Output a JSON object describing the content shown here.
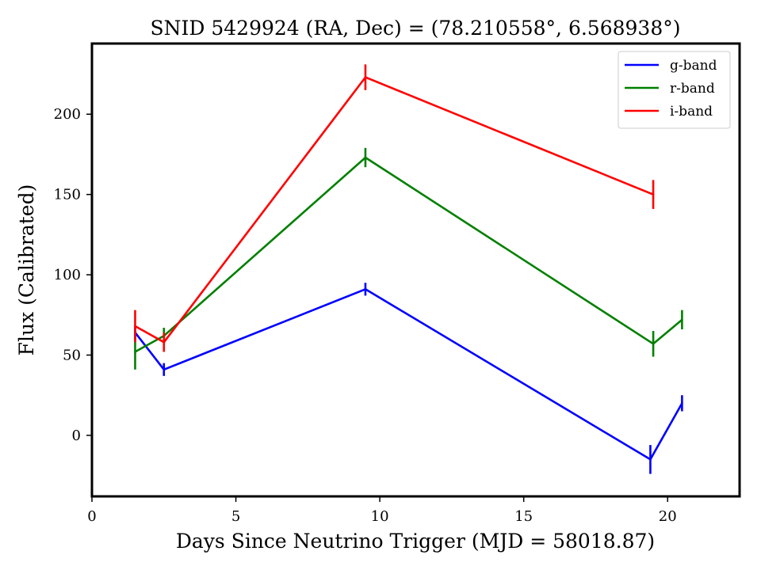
{
  "chart_data": {
    "type": "line",
    "title": "SNID 5429924   (RA, Dec) = (78.210558°, 6.568938°)",
    "xlabel": "Days Since Neutrino Trigger (MJD = 58018.87)",
    "ylabel": "Flux (Calibrated)",
    "xlim": [
      0,
      22.5
    ],
    "ylim": [
      -38,
      244
    ],
    "xticks": [
      0,
      5,
      10,
      15,
      20
    ],
    "yticks": [
      0,
      50,
      100,
      150,
      200
    ],
    "legend_position": "top-right",
    "grid": false,
    "series": [
      {
        "name": "g-band",
        "color": "#0000ff",
        "x": [
          1.5,
          2.5,
          9.5,
          19.4,
          20.5
        ],
        "y": [
          64,
          41,
          91,
          -15,
          20
        ],
        "yerr": [
          4,
          4,
          4,
          9,
          5
        ]
      },
      {
        "name": "r-band",
        "color": "#008000",
        "x": [
          1.5,
          2.5,
          9.5,
          19.5,
          20.5
        ],
        "y": [
          52,
          62,
          173,
          57,
          72
        ],
        "yerr": [
          11,
          5,
          6,
          8,
          6
        ]
      },
      {
        "name": "i-band",
        "color": "#ff0000",
        "x": [
          1.5,
          2.5,
          9.5,
          19.5
        ],
        "y": [
          68,
          58,
          223,
          150
        ],
        "yerr": [
          10,
          6,
          8,
          9
        ]
      }
    ]
  }
}
